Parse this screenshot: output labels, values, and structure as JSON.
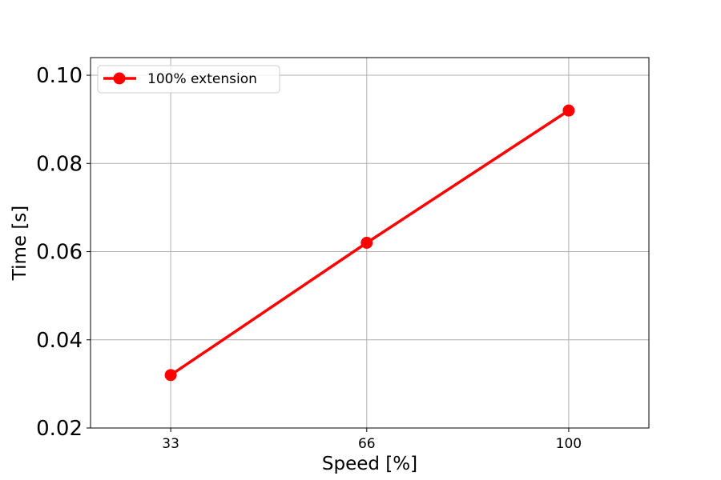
{
  "chart_data": {
    "type": "line",
    "title": "",
    "xlabel": "Speed [%]",
    "ylabel": "Time [s]",
    "x_categories": [
      "33",
      "66",
      "100"
    ],
    "x": [
      33,
      66,
      100
    ],
    "xlim": [
      19.5,
      113.5
    ],
    "ylim": [
      0.02,
      0.104
    ],
    "yticks": [
      0.02,
      0.04,
      0.06,
      0.08,
      0.1
    ],
    "ytick_labels": [
      "0.02",
      "0.04",
      "0.06",
      "0.08",
      "0.10"
    ],
    "grid": true,
    "legend_position": "upper-left",
    "series": [
      {
        "name": "100% extension",
        "color": "#ff0000",
        "marker": "circle",
        "y": [
          0.032,
          0.062,
          0.092
        ]
      }
    ]
  }
}
